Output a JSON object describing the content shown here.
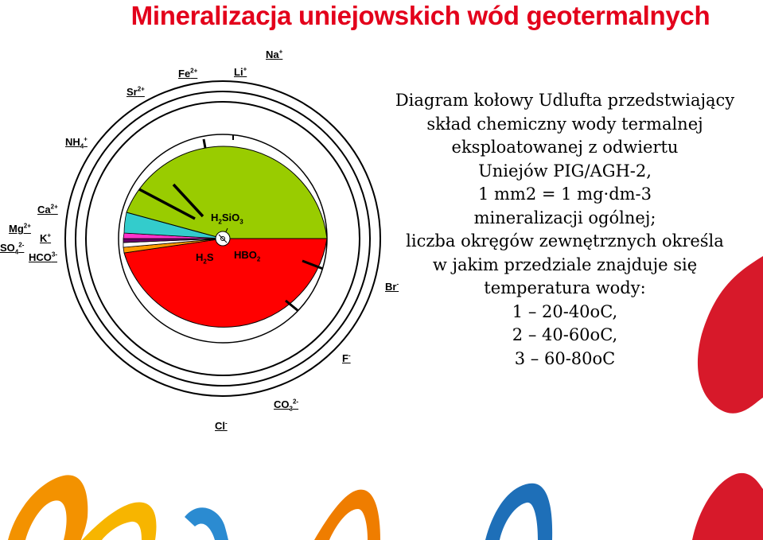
{
  "title": "Mineralizacja uniejowskich wód geotermalnych",
  "description": [
    "Diagram kołowy Udlufta przedstwiający",
    "skład chemiczny wody termalnej",
    "eksploatowanej z odwiertu",
    "Uniejów PIG/AGH-2,",
    "1 mm2 = 1 mg·dm-3",
    "mineralizacji ogólnej;",
    "liczba okręgów zewnętrznych określa",
    "w jakim przedziale znajduje się",
    "temperatura wody:",
    "1 – 20-40oC,",
    "2 – 40-60oC,",
    "3 – 60-80oC"
  ],
  "ions": {
    "na": {
      "base": "Na",
      "sup": "+"
    },
    "li": {
      "base": "Li",
      "sup": "+"
    },
    "fe": {
      "base": "Fe",
      "sup": "2+"
    },
    "sr": {
      "base": "Sr",
      "sup": "2+"
    },
    "nh4": {
      "base": "NH",
      "sub": "4",
      "sup": "+"
    },
    "ca": {
      "base": "Ca",
      "sup": "2+"
    },
    "mg": {
      "base": "Mg",
      "sup": "2+"
    },
    "k": {
      "base": "K",
      "sup": "+"
    },
    "so4": {
      "base": "SO",
      "sub": "4",
      "sup": "2-"
    },
    "hco3": {
      "base": "HCO",
      "sup": "3-"
    },
    "br": {
      "base": "Br",
      "sup": "-"
    },
    "f": {
      "base": "F",
      "sup": "-"
    },
    "co3": {
      "base": "CO",
      "sub": "3",
      "sup": "2-"
    },
    "cl": {
      "base": "Cl",
      "sup": "-"
    }
  },
  "inner_labels": {
    "h2sio3": {
      "a": "H",
      "sub": "2",
      "b": "SiO",
      "sub2": "3"
    },
    "h2s": {
      "a": "H",
      "sub": "2",
      "b": "S"
    },
    "hbo2": {
      "a": "HBO",
      "sub": "2"
    }
  },
  "colors": {
    "title": "#e3001b",
    "cl_segment": "#ff0000",
    "na_segment": "#99cc00",
    "ca_segment": "#33cccc",
    "mg_segment": "#ff33cc",
    "k_segment": "#660066",
    "so4_segment": "#ff9900"
  },
  "circles": {
    "outer_ring_count": 3
  }
}
